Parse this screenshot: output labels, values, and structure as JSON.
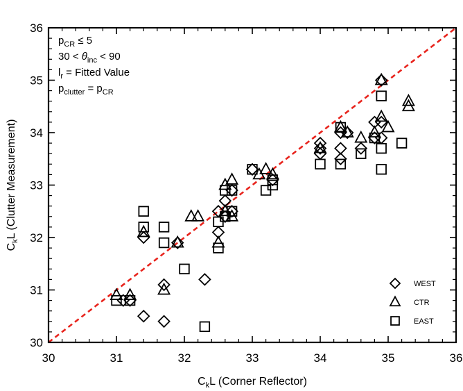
{
  "chart_data": {
    "type": "scatter",
    "title": "",
    "xlabel": {
      "main": "C",
      "sub": "k",
      "rest": "L (Corner Reflector)"
    },
    "ylabel": {
      "main": "C",
      "sub": "k",
      "rest": "L (Clutter Measurement)"
    },
    "xlim": [
      30,
      36
    ],
    "ylim": [
      30,
      36
    ],
    "xticks": [
      "30",
      "31",
      "32",
      "33",
      "34",
      "35",
      "36"
    ],
    "yticks": [
      "30",
      "31",
      "32",
      "33",
      "34",
      "35",
      "36"
    ],
    "reference_line": {
      "from": [
        30,
        30
      ],
      "to": [
        36,
        36
      ],
      "color": "#e8241d",
      "style": "dashed"
    },
    "annotations": [
      {
        "parts": [
          {
            "t": "p"
          },
          {
            "t": "CR",
            "sub": true
          },
          {
            "t": " ≤ 5"
          }
        ]
      },
      {
        "parts": [
          {
            "t": "30 < "
          },
          {
            "t": "θ",
            "italic": true
          },
          {
            "t": "inc",
            "sub": true
          },
          {
            "t": " < 90"
          }
        ]
      },
      {
        "parts": [
          {
            "t": "l"
          },
          {
            "t": "r",
            "sub": true
          },
          {
            "t": " = Fitted Value"
          }
        ]
      },
      {
        "parts": [
          {
            "t": "p"
          },
          {
            "t": "clutter",
            "sub": true
          },
          {
            "t": " = p"
          },
          {
            "t": "CR",
            "sub": true
          }
        ]
      }
    ],
    "legend_position": "bottom-right",
    "series": [
      {
        "name": "WEST",
        "marker": "diamond",
        "points": [
          [
            31.1,
            30.8
          ],
          [
            31.2,
            30.8
          ],
          [
            31.4,
            32.0
          ],
          [
            31.4,
            30.5
          ],
          [
            31.7,
            30.4
          ],
          [
            31.7,
            31.1
          ],
          [
            31.9,
            31.9
          ],
          [
            32.3,
            31.2
          ],
          [
            32.5,
            32.1
          ],
          [
            32.5,
            32.5
          ],
          [
            32.6,
            32.4
          ],
          [
            32.6,
            32.7
          ],
          [
            32.7,
            32.9
          ],
          [
            32.7,
            32.5
          ],
          [
            33.0,
            33.3
          ],
          [
            33.3,
            33.1
          ],
          [
            34.0,
            33.6
          ],
          [
            34.0,
            33.7
          ],
          [
            34.0,
            33.8
          ],
          [
            34.3,
            33.5
          ],
          [
            34.3,
            33.7
          ],
          [
            34.3,
            34.0
          ],
          [
            34.4,
            34.0
          ],
          [
            34.6,
            33.7
          ],
          [
            34.8,
            34.2
          ],
          [
            34.8,
            33.9
          ],
          [
            34.9,
            35.0
          ],
          [
            34.9,
            33.9
          ],
          [
            34.9,
            34.2
          ]
        ]
      },
      {
        "name": "CTR",
        "marker": "triangle",
        "points": [
          [
            31.0,
            30.9
          ],
          [
            31.2,
            30.9
          ],
          [
            31.4,
            32.1
          ],
          [
            31.7,
            31.0
          ],
          [
            31.9,
            31.9
          ],
          [
            32.1,
            32.4
          ],
          [
            32.2,
            32.4
          ],
          [
            32.5,
            31.9
          ],
          [
            32.6,
            32.5
          ],
          [
            32.6,
            33.0
          ],
          [
            32.7,
            33.1
          ],
          [
            32.7,
            32.4
          ],
          [
            33.1,
            33.2
          ],
          [
            33.2,
            33.3
          ],
          [
            33.3,
            33.2
          ],
          [
            34.0,
            33.7
          ],
          [
            34.3,
            34.1
          ],
          [
            34.4,
            34.0
          ],
          [
            34.6,
            33.9
          ],
          [
            34.8,
            34.0
          ],
          [
            34.9,
            35.0
          ],
          [
            34.9,
            34.3
          ],
          [
            35.0,
            34.1
          ],
          [
            35.3,
            34.6
          ],
          [
            35.3,
            34.5
          ]
        ]
      },
      {
        "name": "EAST",
        "marker": "square",
        "points": [
          [
            31.0,
            30.8
          ],
          [
            31.2,
            30.8
          ],
          [
            31.4,
            32.5
          ],
          [
            31.4,
            32.2
          ],
          [
            31.7,
            32.2
          ],
          [
            31.7,
            31.9
          ],
          [
            32.0,
            31.4
          ],
          [
            32.3,
            30.3
          ],
          [
            32.5,
            32.3
          ],
          [
            32.5,
            31.8
          ],
          [
            32.6,
            32.9
          ],
          [
            32.6,
            32.4
          ],
          [
            32.7,
            32.9
          ],
          [
            32.7,
            32.5
          ],
          [
            33.0,
            33.3
          ],
          [
            33.2,
            32.9
          ],
          [
            33.3,
            33.1
          ],
          [
            33.3,
            33.0
          ],
          [
            34.0,
            33.4
          ],
          [
            34.3,
            34.1
          ],
          [
            34.3,
            33.4
          ],
          [
            34.6,
            33.6
          ],
          [
            34.8,
            33.9
          ],
          [
            34.9,
            34.7
          ],
          [
            34.9,
            33.7
          ],
          [
            34.9,
            33.3
          ],
          [
            35.2,
            33.8
          ]
        ]
      }
    ]
  }
}
